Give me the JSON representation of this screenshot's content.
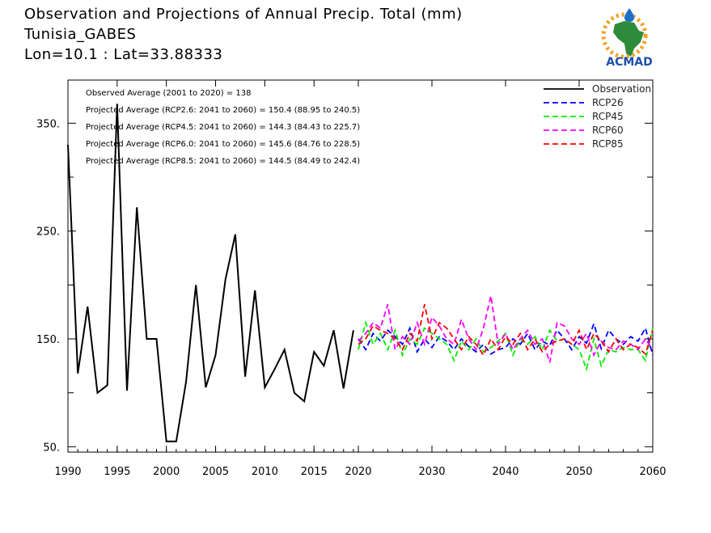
{
  "header": {
    "title": "Observation and Projections of Annual Precip. Total (mm)",
    "location": "Tunisia_GABES",
    "coords": "Lon=10.1 : Lat=33.88333",
    "logo_text": "ACMAD"
  },
  "annotations": [
    "Observed Average (2001 to 2020) = 138",
    "Projected Average (RCP2.6: 2041 to 2060) = 150.4 (88.95 to 240.5)",
    "Projected Average (RCP4.5: 2041 to 2060) = 144.3 (84.43 to 225.7)",
    "Projected Average (RCP6.0: 2041 to 2060) = 145.6 (84.76 to 228.5)",
    "Projected Average (RCP8.5: 2041 to 2060) = 144.5 (84.49 to 242.4)"
  ],
  "chart_data": {
    "type": "line",
    "title": "Observation and Projections of Annual Precip. Total (mm)",
    "xlabel": "",
    "ylabel": "",
    "ylim": [
      45,
      390
    ],
    "y_ticks": [
      50,
      150,
      250,
      350
    ],
    "y_tick_labels": [
      "50.",
      "150.",
      "250.",
      "350."
    ],
    "x_ticks_obs": [
      1990,
      1995,
      2000,
      2005,
      2010,
      2015,
      2020
    ],
    "x_ticks_proj": [
      2020,
      2030,
      2040,
      2050,
      2060
    ],
    "x_tick_labels": [
      "1990",
      "1995",
      "2000",
      "2005",
      "2010",
      "2015",
      "2020",
      "2030",
      "2040",
      "2050",
      "2060"
    ],
    "legend_position": "top-right",
    "series": [
      {
        "name": "Observation",
        "color": "#000000",
        "style": "solid",
        "x": [
          1990,
          1991,
          1992,
          1993,
          1994,
          1995,
          1996,
          1997,
          1998,
          1999,
          2000,
          2001,
          2002,
          2003,
          2004,
          2005,
          2006,
          2007,
          2008,
          2009,
          2010,
          2011,
          2012,
          2013,
          2014,
          2015,
          2016,
          2017,
          2018,
          2019
        ],
        "values": [
          330,
          118,
          180,
          100,
          107,
          368,
          102,
          272,
          150,
          150,
          55,
          55,
          110,
          200,
          105,
          135,
          205,
          247,
          115,
          195,
          105,
          122,
          140,
          100,
          92,
          138,
          125,
          158,
          104,
          158
        ]
      },
      {
        "name": "RCP26",
        "color": "#0000ff",
        "style": "dashed",
        "x": [
          2020,
          2021,
          2022,
          2023,
          2024,
          2025,
          2026,
          2027,
          2028,
          2029,
          2030,
          2031,
          2032,
          2033,
          2034,
          2035,
          2036,
          2037,
          2038,
          2039,
          2040,
          2041,
          2042,
          2043,
          2044,
          2045,
          2046,
          2047,
          2048,
          2049,
          2050,
          2051,
          2052,
          2053,
          2054,
          2055,
          2056,
          2057,
          2058,
          2059,
          2060
        ],
        "values": [
          150,
          140,
          155,
          148,
          158,
          152,
          145,
          160,
          138,
          150,
          142,
          152,
          148,
          140,
          150,
          143,
          138,
          145,
          136,
          140,
          142,
          150,
          145,
          155,
          140,
          148,
          144,
          158,
          150,
          140,
          152,
          146,
          164,
          141,
          158,
          150,
          145,
          152,
          148,
          160,
          135
        ]
      },
      {
        "name": "RCP45",
        "color": "#00ee00",
        "style": "dashed",
        "x": [
          2020,
          2021,
          2022,
          2023,
          2024,
          2025,
          2026,
          2027,
          2028,
          2029,
          2030,
          2031,
          2032,
          2033,
          2034,
          2035,
          2036,
          2037,
          2038,
          2039,
          2040,
          2041,
          2042,
          2043,
          2044,
          2045,
          2046,
          2047,
          2048,
          2049,
          2050,
          2051,
          2052,
          2053,
          2054,
          2055,
          2056,
          2057,
          2058,
          2059,
          2060
        ],
        "values": [
          140,
          165,
          145,
          155,
          140,
          158,
          135,
          150,
          145,
          160,
          155,
          150,
          145,
          130,
          148,
          140,
          150,
          138,
          142,
          148,
          155,
          135,
          150,
          145,
          152,
          140,
          158,
          148,
          150,
          145,
          140,
          122,
          150,
          125,
          140,
          138,
          142,
          140,
          140,
          130,
          160
        ]
      },
      {
        "name": "RCP60",
        "color": "#ff00ff",
        "style": "dashed",
        "x": [
          2020,
          2021,
          2022,
          2023,
          2024,
          2025,
          2026,
          2027,
          2028,
          2029,
          2030,
          2031,
          2032,
          2033,
          2034,
          2035,
          2036,
          2037,
          2038,
          2039,
          2040,
          2041,
          2042,
          2043,
          2044,
          2045,
          2046,
          2047,
          2048,
          2049,
          2050,
          2051,
          2052,
          2053,
          2054,
          2055,
          2056,
          2057,
          2058,
          2059,
          2060
        ],
        "values": [
          148,
          155,
          165,
          160,
          182,
          140,
          152,
          145,
          165,
          145,
          170,
          162,
          150,
          145,
          168,
          150,
          140,
          160,
          190,
          145,
          155,
          140,
          150,
          158,
          145,
          150,
          128,
          165,
          162,
          150,
          145,
          155,
          135,
          148,
          142,
          140,
          148,
          145,
          140,
          150,
          140
        ]
      },
      {
        "name": "RCP85",
        "color": "#ff0000",
        "style": "dashed",
        "x": [
          2020,
          2021,
          2022,
          2023,
          2024,
          2025,
          2026,
          2027,
          2028,
          2029,
          2030,
          2031,
          2032,
          2033,
          2034,
          2035,
          2036,
          2037,
          2038,
          2039,
          2040,
          2041,
          2042,
          2043,
          2044,
          2045,
          2046,
          2047,
          2048,
          2049,
          2050,
          2051,
          2052,
          2053,
          2054,
          2055,
          2056,
          2057,
          2058,
          2059,
          2060
        ],
        "values": [
          145,
          150,
          162,
          158,
          155,
          150,
          140,
          155,
          148,
          182,
          150,
          165,
          160,
          150,
          140,
          152,
          145,
          135,
          150,
          140,
          152,
          145,
          155,
          140,
          150,
          138,
          145,
          148,
          150,
          145,
          158,
          140,
          155,
          148,
          138,
          150,
          140,
          145,
          142,
          136,
          158
        ]
      }
    ]
  }
}
